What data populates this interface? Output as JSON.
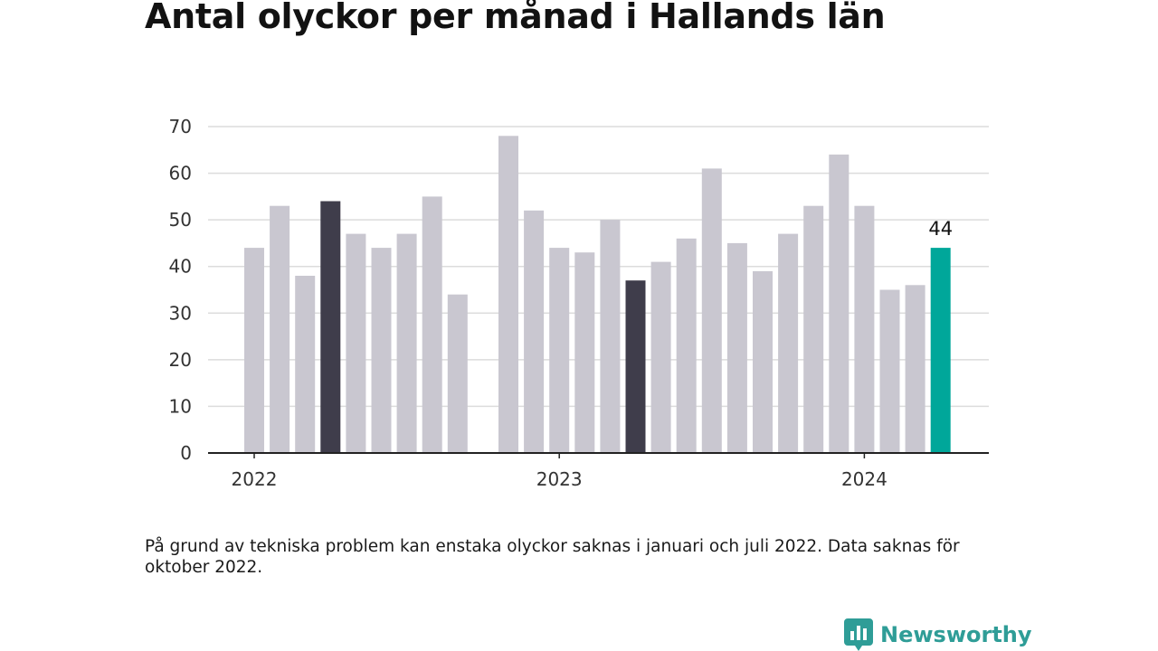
{
  "colors": {
    "bar_default": "#c9c7d0",
    "bar_highlight": "#3f3d4b",
    "bar_latest": "#00a79a",
    "grid": "#dcdcdc",
    "axis": "#222222",
    "brand": "#2f9d97"
  },
  "title": "Antal olyckor per månad i Hallands län",
  "note": "På grund av tekniska problem kan enstaka olyckor saknas i januari och juli 2022. Data saknas för oktober 2022.",
  "brand": {
    "name": "Newsworthy",
    "icon": "newsworthy-logo-icon"
  },
  "chart_data": {
    "type": "bar",
    "x_tick_labels": [
      "2022",
      "2023",
      "2024"
    ],
    "y_ticks": [
      0,
      10,
      20,
      30,
      40,
      50,
      60,
      70
    ],
    "ylim": [
      0,
      70
    ],
    "grid": true,
    "data_label": "44",
    "series": [
      {
        "values": [
          {
            "month": "2022-01",
            "value": 44,
            "style": "default"
          },
          {
            "month": "2022-02",
            "value": 53,
            "style": "default"
          },
          {
            "month": "2022-03",
            "value": 38,
            "style": "default"
          },
          {
            "month": "2022-04",
            "value": 54,
            "style": "highlight"
          },
          {
            "month": "2022-05",
            "value": 47,
            "style": "default"
          },
          {
            "month": "2022-06",
            "value": 44,
            "style": "default"
          },
          {
            "month": "2022-07",
            "value": 47,
            "style": "default"
          },
          {
            "month": "2022-08",
            "value": 55,
            "style": "default"
          },
          {
            "month": "2022-09",
            "value": 34,
            "style": "default"
          },
          {
            "month": "2022-11",
            "value": 68,
            "style": "default"
          },
          {
            "month": "2022-12",
            "value": 52,
            "style": "default"
          },
          {
            "month": "2023-01",
            "value": 44,
            "style": "default"
          },
          {
            "month": "2023-02",
            "value": 43,
            "style": "default"
          },
          {
            "month": "2023-03",
            "value": 50,
            "style": "default"
          },
          {
            "month": "2023-04",
            "value": 37,
            "style": "highlight"
          },
          {
            "month": "2023-05",
            "value": 41,
            "style": "default"
          },
          {
            "month": "2023-06",
            "value": 46,
            "style": "default"
          },
          {
            "month": "2023-07",
            "value": 61,
            "style": "default"
          },
          {
            "month": "2023-08",
            "value": 45,
            "style": "default"
          },
          {
            "month": "2023-09",
            "value": 39,
            "style": "default"
          },
          {
            "month": "2023-10",
            "value": 47,
            "style": "default"
          },
          {
            "month": "2023-11",
            "value": 53,
            "style": "default"
          },
          {
            "month": "2023-12",
            "value": 64,
            "style": "default"
          },
          {
            "month": "2024-01",
            "value": 53,
            "style": "default"
          },
          {
            "month": "2024-02",
            "value": 35,
            "style": "default"
          },
          {
            "month": "2024-03",
            "value": 36,
            "style": "default"
          },
          {
            "month": "2024-04",
            "value": 44,
            "style": "latest"
          }
        ]
      }
    ]
  }
}
